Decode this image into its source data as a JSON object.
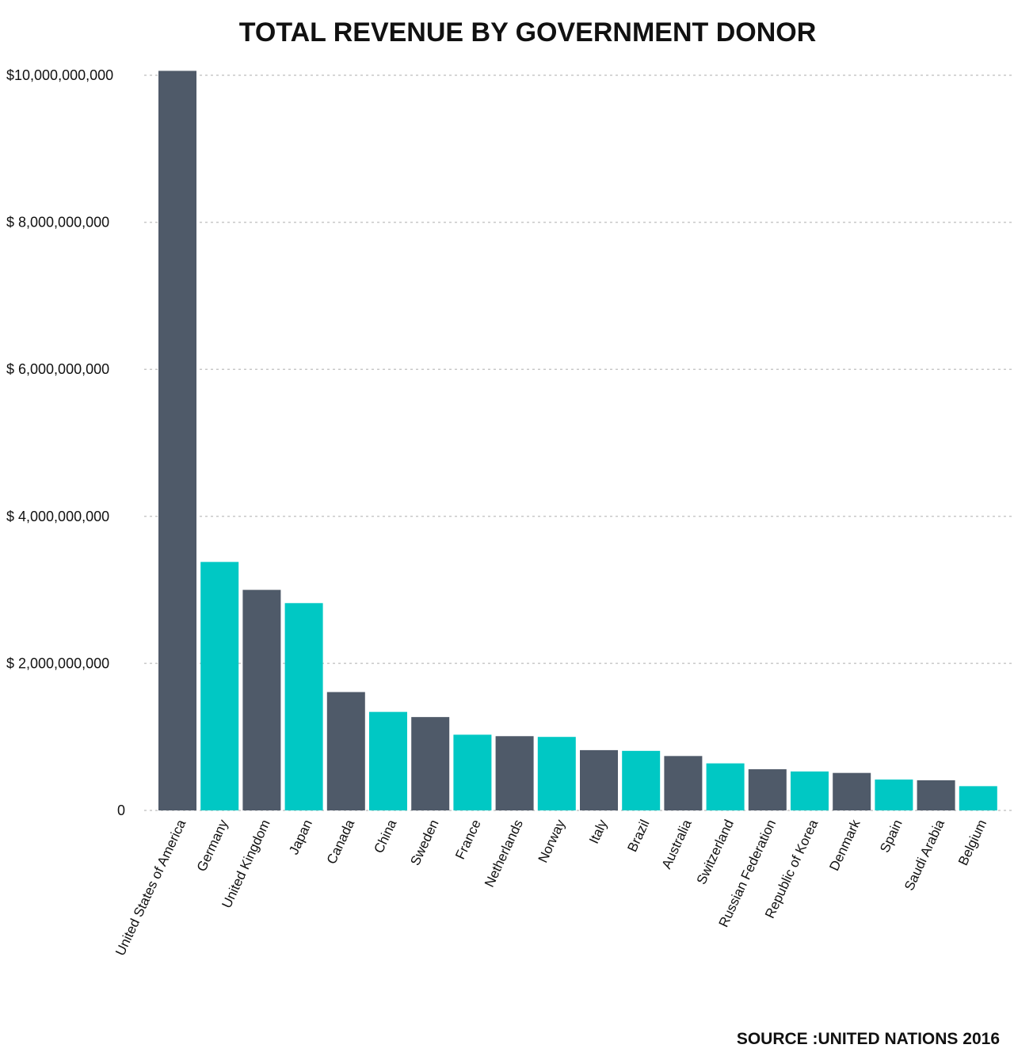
{
  "chart_data": {
    "type": "bar",
    "title": "TOTAL REVENUE BY GOVERNMENT DONOR",
    "source": "SOURCE :UNITED NATIONS 2016",
    "xlabel": "",
    "ylabel": "",
    "ylim": [
      0,
      10000000000
    ],
    "yticks": [
      0,
      2000000000,
      4000000000,
      6000000000,
      8000000000,
      10000000000
    ],
    "ytick_labels": [
      "0",
      "$ 2,000,000,000",
      "$ 4,000,000,000",
      "$ 6,000,000,000",
      "$ 8,000,000,000",
      "$10,000,000,000"
    ],
    "grid": true,
    "colors": [
      "#4f5a69",
      "#00c8c4"
    ],
    "categories": [
      "United States of America",
      "Germany",
      "United Kingdom",
      "Japan",
      "Canada",
      "China",
      "Sweden",
      "France",
      "Netherlands",
      "Norway",
      "Italy",
      "Brazil",
      "Australia",
      "Switzerland",
      "Russian Federation",
      "Republic of Korea",
      "Denmark",
      "Spain",
      "Saudi Arabia",
      "Belgium"
    ],
    "values": [
      10060000000,
      3380000000,
      3000000000,
      2820000000,
      1610000000,
      1340000000,
      1270000000,
      1030000000,
      1010000000,
      1000000000,
      820000000,
      810000000,
      740000000,
      640000000,
      560000000,
      530000000,
      510000000,
      420000000,
      410000000,
      330000000
    ]
  }
}
